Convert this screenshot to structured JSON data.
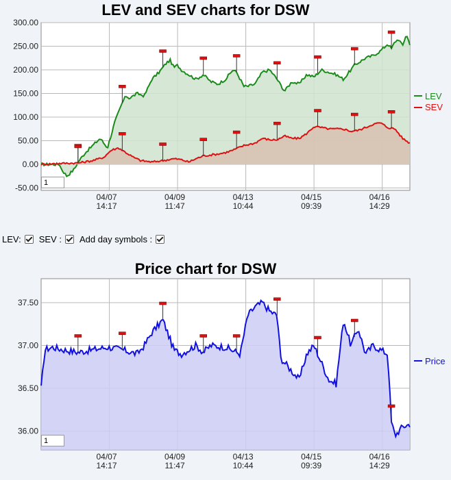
{
  "chart_data": [
    {
      "type": "line",
      "title": "LEV and SEV charts for DSW",
      "ylim": [
        -55,
        300
      ],
      "y_ticks": [
        "300.00",
        "250.00",
        "200.00",
        "150.00",
        "100.00",
        "50.00",
        "0.00",
        "-50.00"
      ],
      "x_tick_labels": [
        [
          "04/07",
          "14:17"
        ],
        [
          "04/09",
          "11:47"
        ],
        [
          "04/13",
          "10:44"
        ],
        [
          "04/15",
          "09:39"
        ],
        [
          "04/16",
          "14:29"
        ]
      ],
      "grid": true,
      "legend_position": "right",
      "series": [
        {
          "name": "LEV",
          "color": "#1a8a1a",
          "x": [
            0,
            0.03,
            0.05,
            0.055,
            0.07,
            0.09,
            0.1,
            0.12,
            0.14,
            0.16,
            0.18,
            0.2,
            0.21,
            0.22,
            0.23,
            0.24,
            0.26,
            0.28,
            0.3,
            0.32,
            0.33,
            0.34,
            0.35,
            0.36,
            0.37,
            0.38,
            0.4,
            0.42,
            0.44,
            0.46,
            0.48,
            0.5,
            0.52,
            0.53,
            0.54,
            0.55,
            0.56,
            0.58,
            0.6,
            0.62,
            0.64,
            0.66,
            0.67,
            0.68,
            0.7,
            0.72,
            0.74,
            0.76,
            0.78,
            0.8,
            0.82,
            0.84,
            0.85,
            0.86,
            0.88,
            0.9,
            0.92,
            0.94,
            0.95,
            0.96,
            0.97,
            0.98,
            0.99,
            1.0
          ],
          "y": [
            0,
            0,
            0,
            -10,
            -25,
            -10,
            5,
            25,
            40,
            55,
            35,
            90,
            110,
            130,
            145,
            140,
            150,
            145,
            180,
            195,
            205,
            215,
            220,
            205,
            210,
            200,
            190,
            180,
            190,
            175,
            170,
            180,
            200,
            195,
            180,
            165,
            165,
            170,
            195,
            200,
            180,
            155,
            165,
            175,
            170,
            190,
            185,
            200,
            195,
            190,
            180,
            200,
            210,
            215,
            225,
            230,
            240,
            255,
            245,
            260,
            265,
            250,
            275,
            255
          ]
        },
        {
          "name": "SEV",
          "color": "#e01010",
          "x": [
            0,
            0.05,
            0.1,
            0.14,
            0.17,
            0.19,
            0.21,
            0.23,
            0.25,
            0.27,
            0.3,
            0.33,
            0.36,
            0.38,
            0.4,
            0.42,
            0.44,
            0.46,
            0.48,
            0.5,
            0.52,
            0.55,
            0.58,
            0.6,
            0.62,
            0.64,
            0.66,
            0.68,
            0.7,
            0.72,
            0.74,
            0.76,
            0.78,
            0.8,
            0.82,
            0.84,
            0.86,
            0.88,
            0.9,
            0.92,
            0.94,
            0.96,
            0.98,
            1.0
          ],
          "y": [
            0,
            2,
            3,
            8,
            15,
            30,
            35,
            25,
            15,
            8,
            5,
            8,
            12,
            10,
            5,
            12,
            18,
            20,
            22,
            25,
            30,
            40,
            45,
            55,
            52,
            52,
            60,
            55,
            55,
            65,
            80,
            78,
            75,
            75,
            75,
            70,
            72,
            78,
            85,
            88,
            78,
            75,
            55,
            45
          ]
        }
      ]
    },
    {
      "type": "line",
      "title": "Price chart for DSW",
      "ylim": [
        35.78,
        37.78
      ],
      "y_ticks": [
        "37.50",
        "37.00",
        "36.50",
        "36.00"
      ],
      "x_tick_labels": [
        [
          "04/07",
          "14:17"
        ],
        [
          "04/09",
          "11:47"
        ],
        [
          "04/13",
          "10:44"
        ],
        [
          "04/15",
          "09:39"
        ],
        [
          "04/16",
          "14:29"
        ]
      ],
      "grid": true,
      "legend_position": "right",
      "series": [
        {
          "name": "Price",
          "color": "#1010e0",
          "x": [
            0,
            0.01,
            0.03,
            0.06,
            0.1,
            0.14,
            0.18,
            0.22,
            0.26,
            0.28,
            0.3,
            0.33,
            0.36,
            0.38,
            0.4,
            0.42,
            0.44,
            0.46,
            0.5,
            0.54,
            0.56,
            0.58,
            0.6,
            0.62,
            0.64,
            0.65,
            0.66,
            0.68,
            0.7,
            0.72,
            0.74,
            0.76,
            0.78,
            0.8,
            0.82,
            0.84,
            0.86,
            0.88,
            0.9,
            0.92,
            0.94,
            0.95,
            0.96,
            0.97,
            0.98,
            1.0
          ],
          "y": [
            36.5,
            36.95,
            36.98,
            36.95,
            36.92,
            36.95,
            36.98,
            36.95,
            36.9,
            37.0,
            37.15,
            37.3,
            36.95,
            36.9,
            36.95,
            37.0,
            36.92,
            37.0,
            36.98,
            36.9,
            37.35,
            37.45,
            37.5,
            37.4,
            37.35,
            36.85,
            36.8,
            36.7,
            36.6,
            36.9,
            37.0,
            36.8,
            36.6,
            36.55,
            37.3,
            37.0,
            37.2,
            36.9,
            37.0,
            36.95,
            36.9,
            36.1,
            35.95,
            36.0,
            36.05,
            36.08
          ]
        }
      ]
    }
  ],
  "lev_chart": {
    "title": "LEV and SEV charts for DSW",
    "legend": {
      "lev": "LEV",
      "sev": "SEV"
    },
    "page_box_value": "1",
    "markers": {
      "lev_x": [
        0.1,
        0.22,
        0.33,
        0.44,
        0.53,
        0.64,
        0.75,
        0.85,
        0.95
      ],
      "sev_x": [
        0.1,
        0.22,
        0.33,
        0.44,
        0.53,
        0.64,
        0.75,
        0.85,
        0.95
      ]
    }
  },
  "controls": {
    "lev_label": "LEV:",
    "sev_label": "SEV :",
    "day_symbols_label": "Add day symbols :"
  },
  "price_chart": {
    "title": "Price chart for DSW",
    "legend": {
      "price": "Price"
    },
    "page_box_value": "1",
    "markers_x": [
      0.1,
      0.22,
      0.33,
      0.44,
      0.53,
      0.64,
      0.75,
      0.85,
      0.95
    ]
  },
  "colors": {
    "lev_line": "#1a8a1a",
    "lev_fill": "#cfe3cf",
    "sev_line": "#e01010",
    "sev_fill": "#d8c0b0",
    "price_line": "#1010e0",
    "price_fill": "#ccccf5",
    "marker": "#e01010"
  }
}
